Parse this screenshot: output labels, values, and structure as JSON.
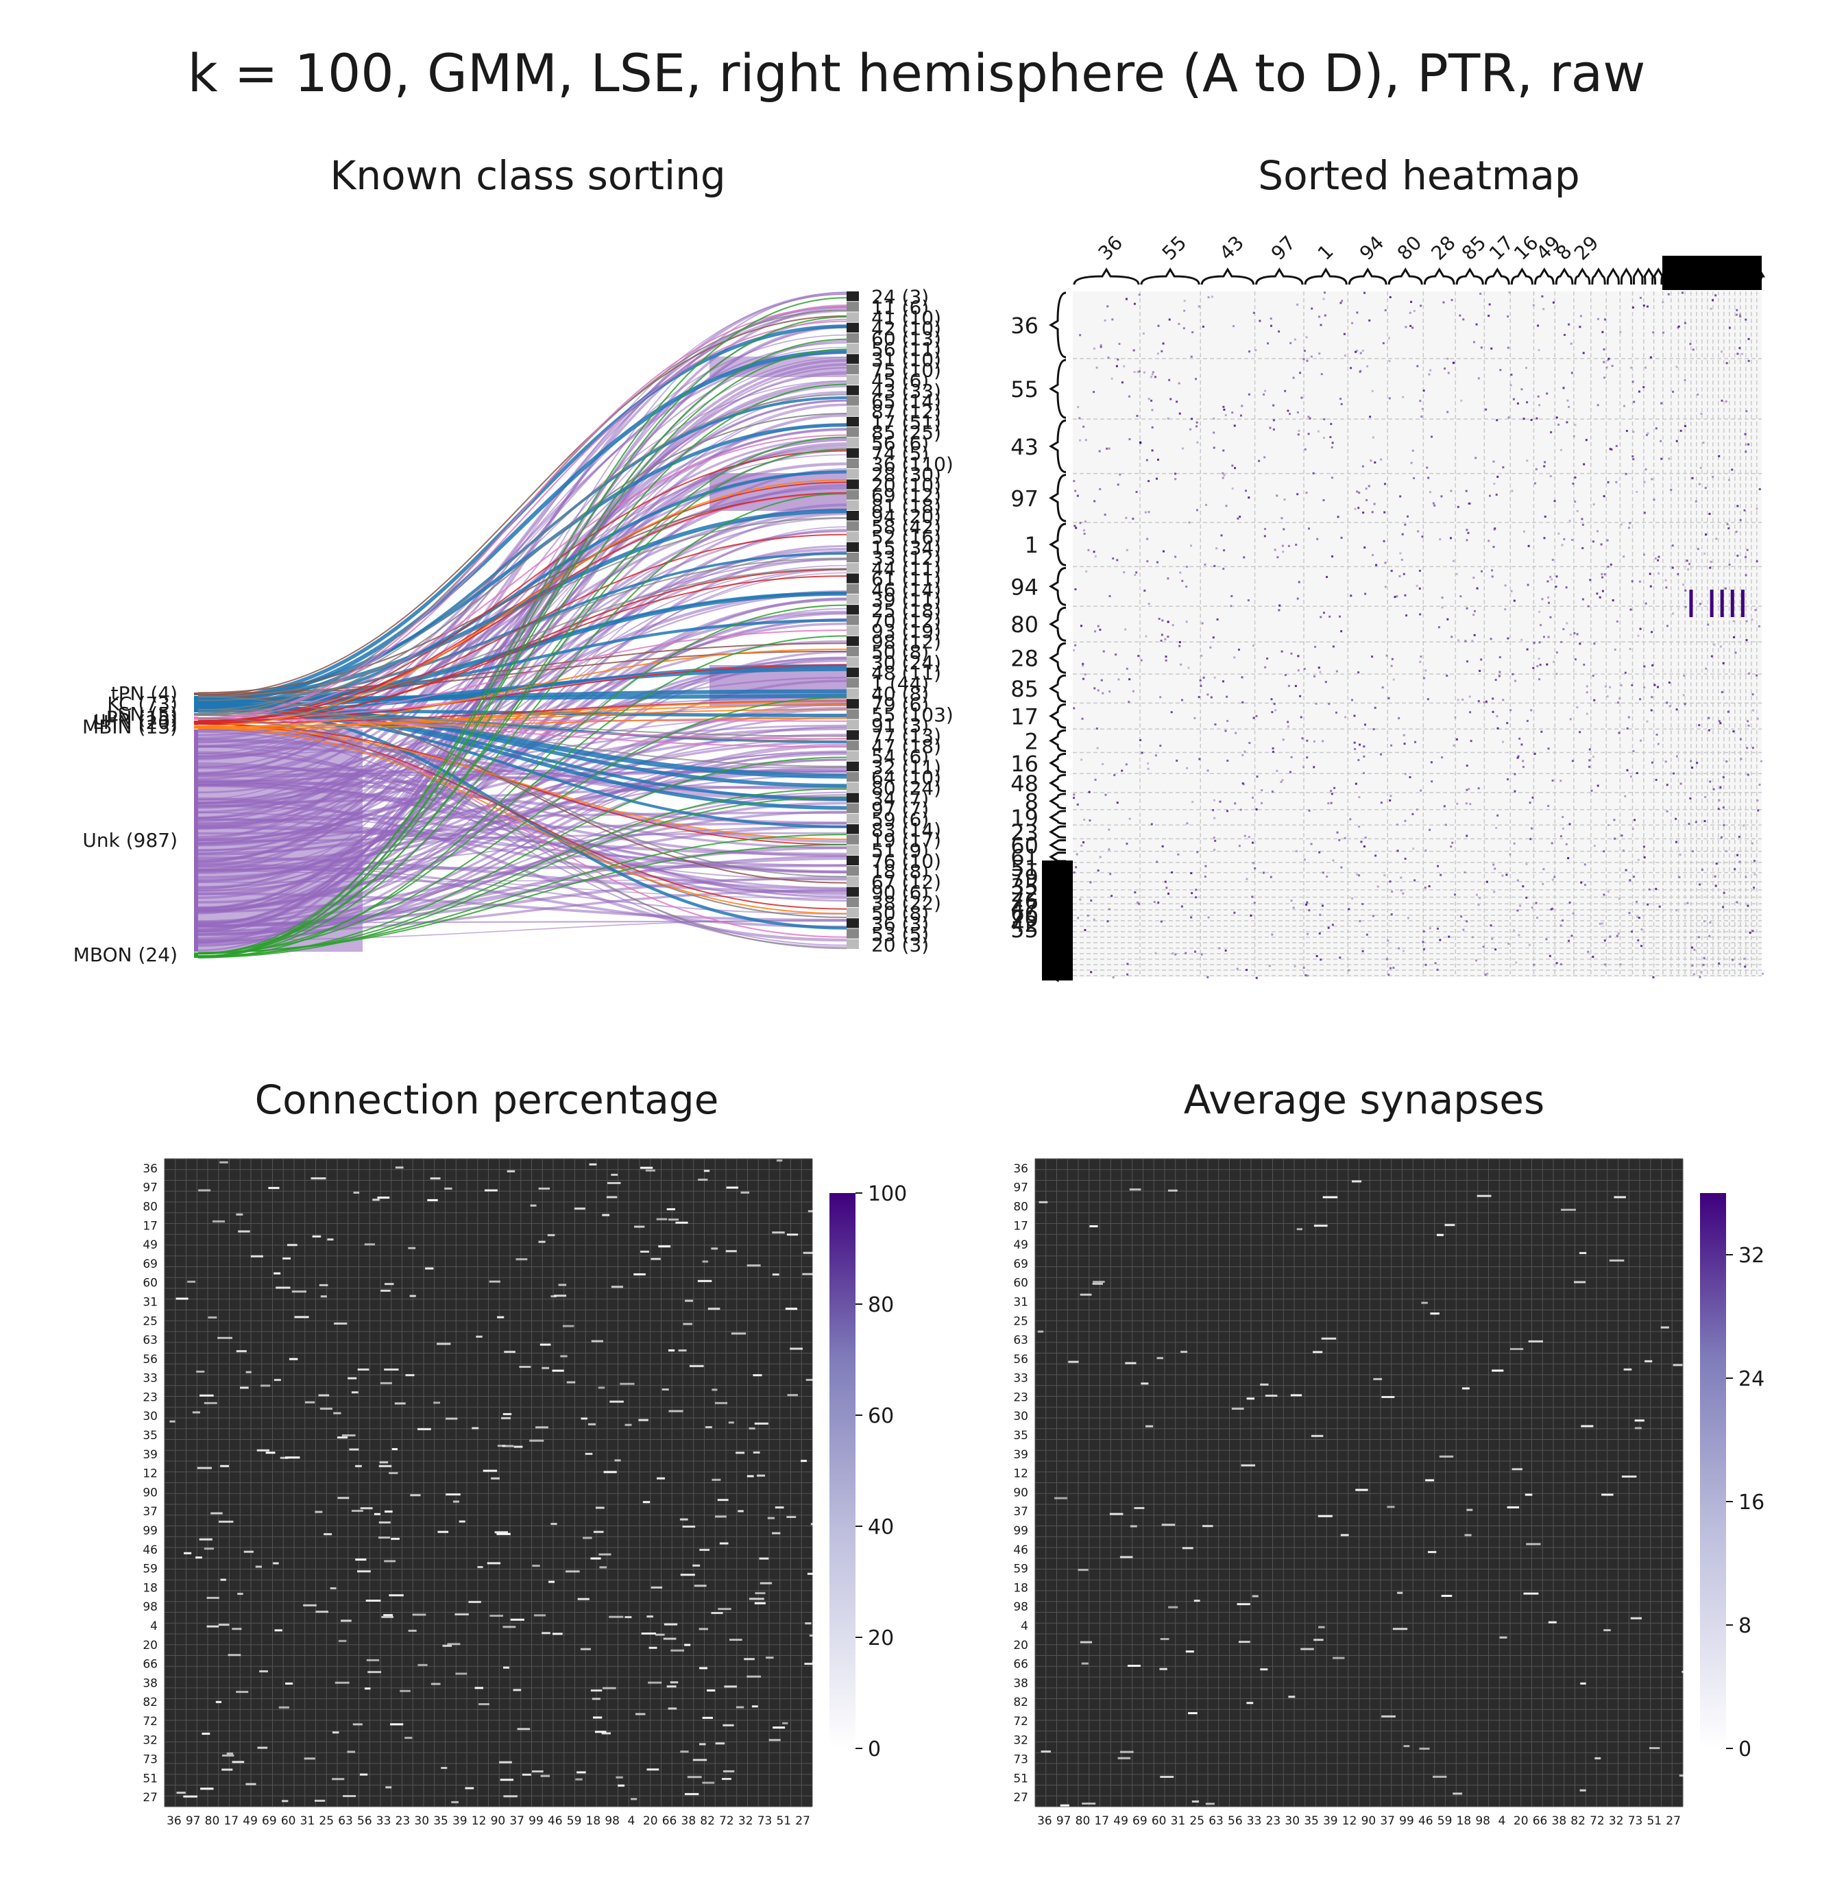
{
  "figure": {
    "suptitle": "k = 100, GMM, LSE, right hemisphere (A to D), PTR, raw"
  },
  "colors": {
    "Unk": "#9467bd",
    "KC": "#1f77b4",
    "MBON": "#2ca02c",
    "tPN": "#8c564b",
    "LHN": "#d62728",
    "uPN": "#e377c2",
    "MBIN": "#ff7f0e",
    "other": "#7f7f7f",
    "heat_low": "#ffffff",
    "heat_high": "#3f007d"
  },
  "chart_data": [
    {
      "type": "sankey",
      "title": "Known class sorting",
      "left_nodes": [
        {
          "label": "tPN (4)",
          "class": "tPN",
          "count": 4
        },
        {
          "label": "KC (73)",
          "class": "KC",
          "count": 73
        },
        {
          "label": "LSN (5)",
          "class": "LSN",
          "count": 5
        },
        {
          "label": "uPN (15)",
          "class": "uPN",
          "count": 15
        },
        {
          "label": "LHN (20)",
          "class": "LHN",
          "count": 20
        },
        {
          "label": "MBIN (13)",
          "class": "MBIN",
          "count": 13
        },
        {
          "label": "Unk (987)",
          "class": "Unk",
          "count": 987
        },
        {
          "label": "MBON (24)",
          "class": "MBON",
          "count": 24
        }
      ],
      "right_nodes": [
        "24 (3)",
        "11 (6)",
        "41 (10)",
        "42 (10)",
        "60 (13)",
        "56 (11)",
        "31 (10)",
        "75 (10)",
        "45 (6)",
        "43 (33)",
        "65 (14)",
        "87 (12)",
        "17 (51)",
        "85 (25)",
        "56 (6)",
        "74 (5)",
        "36 (110)",
        "28 (30)",
        "20 (10)",
        "69 (12)",
        "81 (18)",
        "94 (20)",
        "58 (42)",
        "52 (16)",
        "15 (34)",
        "33 (12)",
        "44 (11)",
        "61 (11)",
        "46 (14)",
        "39 (11)",
        "25 (18)",
        "70 (12)",
        "93 (19)",
        "98 (12)",
        "50 (8)",
        "30 (24)",
        "48 (11)",
        "1 (44)",
        "40 (8)",
        "79 (6)",
        "55 (103)",
        "91 (3)",
        "77 (13)",
        "47 (18)",
        "54 (6)",
        "32 (11)",
        "64 (10)",
        "80 (24)",
        "34 (7)",
        "97 (7)",
        "59 (6)",
        "83 (14)",
        "19 (17)",
        "51 (9)",
        "76 (10)",
        "18 (8)",
        "67 (12)",
        "90 (6)",
        "38 (22)",
        "50 (8)",
        "36 (3)",
        "53 (5)",
        "20 (3)"
      ]
    },
    {
      "type": "heatmap",
      "title": "Sorted heatmap",
      "block_labels": [
        "36",
        "55",
        "43",
        "97",
        "1",
        "94",
        "80",
        "28",
        "85",
        "17",
        "2",
        "16",
        "48",
        "8",
        "19",
        "23",
        "60",
        "61",
        "51",
        "79",
        "35",
        "22",
        "76",
        "47",
        "66",
        "70",
        "42",
        "55"
      ],
      "top_labels": [
        "36",
        "55",
        "43",
        "97",
        "1",
        "94",
        "80",
        "28",
        "85",
        "17",
        "16",
        "49",
        "8",
        "29"
      ]
    },
    {
      "type": "heatmap",
      "title": "Connection percentage",
      "row_labels": [
        "36",
        "97",
        "80",
        "17",
        "49",
        "69",
        "60",
        "31",
        "25",
        "63",
        "56",
        "33",
        "23",
        "30",
        "35",
        "39",
        "12",
        "90",
        "37",
        "99",
        "46",
        "59",
        "18",
        "98",
        "4",
        "20",
        "66",
        "38",
        "82",
        "72",
        "32",
        "73",
        "51",
        "27"
      ],
      "col_labels": [
        "36",
        "97",
        "80",
        "17",
        "49",
        "69",
        "60",
        "31",
        "25",
        "63",
        "56",
        "33",
        "23",
        "30",
        "35",
        "39",
        "12",
        "90",
        "37",
        "99",
        "46",
        "59",
        "18",
        "98",
        "4",
        "20",
        "66",
        "38",
        "82",
        "72",
        "32",
        "73",
        "51",
        "27"
      ],
      "colorbar": {
        "min": 0,
        "max": 100,
        "ticks": [
          "0",
          "20",
          "40",
          "60",
          "80",
          "100"
        ]
      }
    },
    {
      "type": "heatmap",
      "title": "Average synapses",
      "row_labels": [
        "36",
        "97",
        "80",
        "17",
        "49",
        "69",
        "60",
        "31",
        "25",
        "63",
        "56",
        "33",
        "23",
        "30",
        "35",
        "39",
        "12",
        "90",
        "37",
        "99",
        "46",
        "59",
        "18",
        "98",
        "4",
        "20",
        "66",
        "38",
        "82",
        "72",
        "32",
        "73",
        "51",
        "27"
      ],
      "col_labels": [
        "36",
        "97",
        "80",
        "17",
        "49",
        "69",
        "60",
        "31",
        "25",
        "63",
        "56",
        "33",
        "23",
        "30",
        "35",
        "39",
        "12",
        "90",
        "37",
        "99",
        "46",
        "59",
        "18",
        "98",
        "4",
        "20",
        "66",
        "38",
        "82",
        "72",
        "32",
        "73",
        "51",
        "27"
      ],
      "colorbar": {
        "min": 0,
        "max": 36,
        "ticks": [
          "0",
          "8",
          "16",
          "24",
          "32"
        ]
      }
    }
  ]
}
